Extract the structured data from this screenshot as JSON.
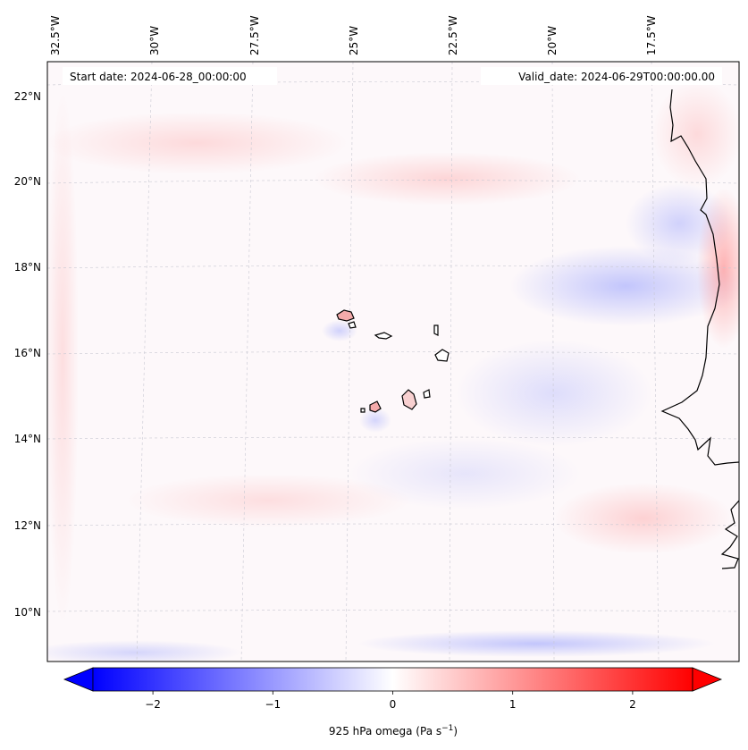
{
  "map": {
    "start_date": "Start date: 2024-06-28_00:00:00",
    "valid_date": "Valid_date: 2024-06-29T00:00:00.00",
    "lon_labels": [
      "32.5°W",
      "30°W",
      "27.5°W",
      "25°W",
      "22.5°W",
      "20°W",
      "17.5°W"
    ],
    "lat_labels": [
      "22°N",
      "20°N",
      "18°N",
      "16°N",
      "14°N",
      "12°N",
      "10°N"
    ],
    "colorbar": {
      "label_main": "925 hPa omega (Pa s",
      "label_exp": "−1",
      "label_close": ")",
      "tick_labels": [
        "−2",
        "−1",
        "0",
        "1",
        "2"
      ],
      "ticks": [
        -2,
        -1,
        0,
        1,
        2
      ],
      "range": [
        -2.5,
        2.5
      ],
      "cmap": "bwr",
      "extend": "both",
      "colors": {
        "negative": "#0000ff",
        "zero": "#ffffff",
        "positive": "#ff0000"
      }
    },
    "land_outline_color": "#000000",
    "gridlines": "dashed, light grey"
  }
}
